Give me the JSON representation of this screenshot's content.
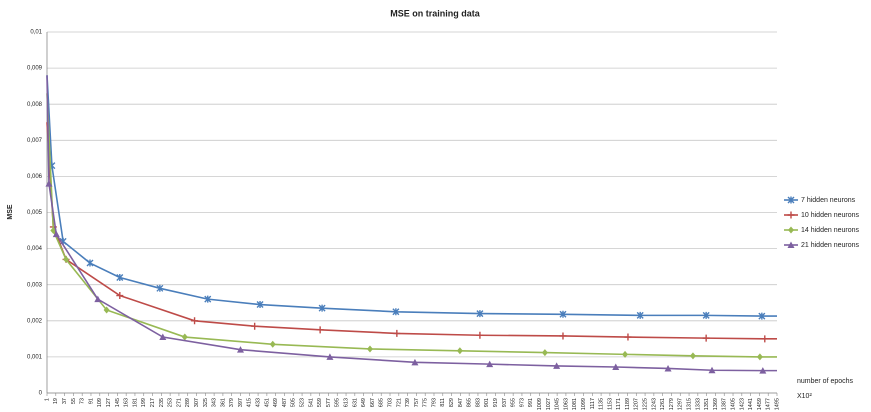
{
  "chart_data": {
    "type": "line",
    "title": "MSE on training data",
    "y_label": "MSE",
    "x_label": "number of epochs",
    "x_unit": "X10²",
    "xlim": [
      1,
      1495
    ],
    "xticks": [
      1,
      19,
      37,
      55,
      73,
      91,
      109,
      127,
      145,
      163,
      181,
      199,
      217,
      235,
      253,
      271,
      289,
      307,
      325,
      343,
      361,
      379,
      397,
      415,
      433,
      451,
      469,
      487,
      505,
      523,
      541,
      559,
      577,
      595,
      613,
      631,
      649,
      667,
      685,
      703,
      721,
      739,
      757,
      775,
      793,
      811,
      829,
      847,
      865,
      883,
      901,
      919,
      937,
      955,
      973,
      991,
      1009,
      1027,
      1045,
      1063,
      1081,
      1099,
      1117,
      1135,
      1153,
      1171,
      1189,
      1207,
      1225,
      1243,
      1261,
      1279,
      1297,
      1315,
      1333,
      1351,
      1369,
      1387,
      1405,
      1423,
      1441,
      1459,
      1477,
      1495
    ],
    "ylim": [
      0,
      0.01
    ],
    "yticks": [
      0,
      {
        "value": 0.001,
        "label": "0,001"
      },
      {
        "value": 0.002,
        "label": "0,002"
      },
      {
        "value": 0.003,
        "label": "0,003"
      },
      {
        "value": 0.004,
        "label": "0,004"
      },
      {
        "value": 0.005,
        "label": "0,005"
      },
      {
        "value": 0.006,
        "label": "0,006"
      },
      {
        "value": 0.007,
        "label": "0,007"
      },
      {
        "value": 0.008,
        "label": "0,008"
      },
      {
        "value": 0.009,
        "label": "0,009"
      },
      {
        "value": 0.01,
        "label": "0,01"
      }
    ],
    "grid": true,
    "legend": "right",
    "series": [
      {
        "name": "7 hidden neurons",
        "color": "#4a7ebb",
        "marker": "star",
        "x": [
          1,
          11,
          34,
          89,
          150,
          232,
          330,
          437,
          564,
          715,
          887,
          1057,
          1215,
          1350,
          1464,
          1495
        ],
        "values": [
          0.0088,
          0.0063,
          0.0042,
          0.0036,
          0.0032,
          0.0029,
          0.0026,
          0.00245,
          0.00235,
          0.00225,
          0.0022,
          0.00218,
          0.00215,
          0.00215,
          0.00213,
          0.00213
        ]
      },
      {
        "name": "10 hidden neurons",
        "color": "#be4b48",
        "marker": "plus",
        "x": [
          1,
          14,
          40,
          150,
          303,
          426,
          560,
          717,
          887,
          1057,
          1190,
          1350,
          1470,
          1495
        ],
        "values": [
          0.0075,
          0.0046,
          0.0037,
          0.0027,
          0.002,
          0.00185,
          0.00175,
          0.00165,
          0.0016,
          0.00158,
          0.00155,
          0.00152,
          0.0015,
          0.0015
        ]
      },
      {
        "name": "14 hidden neurons",
        "color": "#98b954",
        "marker": "diamond",
        "x": [
          1,
          14,
          40,
          123,
          283,
          463,
          662,
          846,
          1020,
          1184,
          1323,
          1460,
          1495
        ],
        "values": [
          0.0083,
          0.0045,
          0.0037,
          0.0023,
          0.00155,
          0.00135,
          0.00122,
          0.00117,
          0.00112,
          0.00107,
          0.00103,
          0.001,
          0.001
        ]
      },
      {
        "name": "21 hidden neurons",
        "color": "#7d60a0",
        "marker": "triangle",
        "x": [
          1,
          5,
          20,
          105,
          238,
          397,
          580,
          754,
          907,
          1044,
          1165,
          1272,
          1362,
          1466,
          1495
        ],
        "values": [
          0.0088,
          0.0058,
          0.0044,
          0.0026,
          0.00155,
          0.0012,
          0.001,
          0.00085,
          0.0008,
          0.00075,
          0.00072,
          0.00068,
          0.00063,
          0.00062,
          0.00062
        ]
      }
    ]
  }
}
